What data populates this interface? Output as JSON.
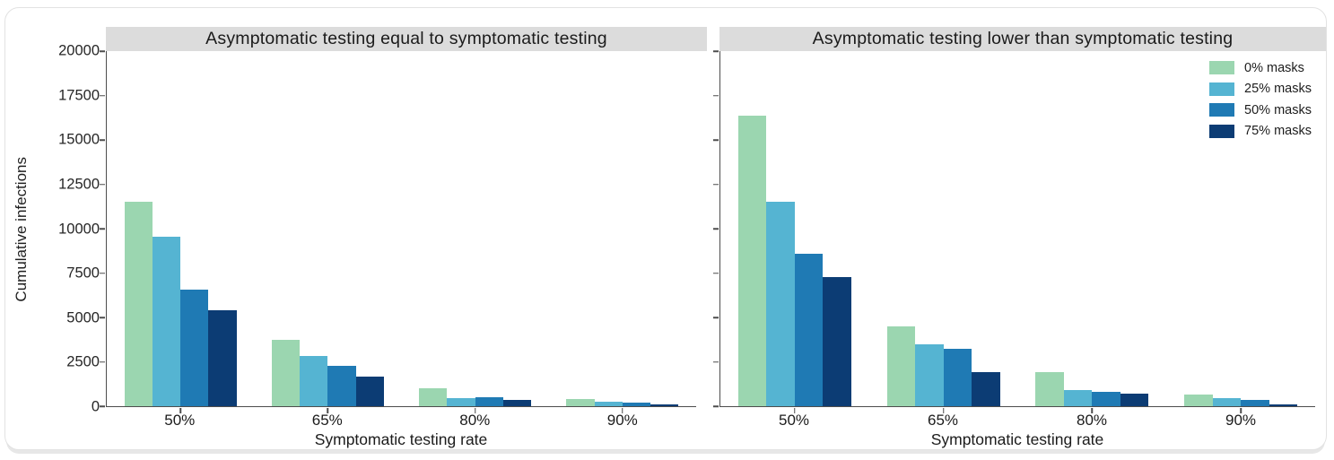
{
  "window": {
    "background": "#ffffff",
    "card_border_color": "#e2e2e2",
    "title_strip_color": "#dcdcdc",
    "axis_color": "#4d4d4d"
  },
  "chart_data": [
    {
      "type": "bar",
      "title": "Asymptomatic testing equal to symptomatic testing",
      "categories": [
        "50%",
        "65%",
        "80%",
        "90%"
      ],
      "series": [
        {
          "name": "0% masks",
          "color": "#9bd6b0",
          "values": [
            11500,
            3750,
            1000,
            380
          ]
        },
        {
          "name": "25% masks",
          "color": "#55b4d2",
          "values": [
            9550,
            2850,
            470,
            250
          ]
        },
        {
          "name": "50% masks",
          "color": "#1f7ab4",
          "values": [
            6550,
            2250,
            500,
            180
          ]
        },
        {
          "name": "75% masks",
          "color": "#0c3c74",
          "values": [
            5400,
            1670,
            330,
            90
          ]
        }
      ],
      "xlabel": "Symptomatic testing rate",
      "ylabel": "Cumulative infections",
      "ylim": [
        0,
        20000
      ],
      "yticks": [
        0,
        2500,
        5000,
        7500,
        10000,
        12500,
        15000,
        17500,
        20000
      ],
      "show_ytick_labels": true,
      "grid": false,
      "legend": null
    },
    {
      "type": "bar",
      "title": "Asymptomatic testing lower than symptomatic testing",
      "categories": [
        "50%",
        "65%",
        "80%",
        "90%"
      ],
      "series": [
        {
          "name": "0% masks",
          "color": "#9bd6b0",
          "values": [
            16350,
            4500,
            1900,
            650
          ]
        },
        {
          "name": "25% masks",
          "color": "#55b4d2",
          "values": [
            11500,
            3480,
            900,
            450
          ]
        },
        {
          "name": "50% masks",
          "color": "#1f7ab4",
          "values": [
            8600,
            3230,
            800,
            350
          ]
        },
        {
          "name": "75% masks",
          "color": "#0c3c74",
          "values": [
            7250,
            1900,
            690,
            100
          ]
        }
      ],
      "xlabel": "Symptomatic testing rate",
      "ylabel": "",
      "ylim": [
        0,
        20000
      ],
      "yticks": [
        0,
        2500,
        5000,
        7500,
        10000,
        12500,
        15000,
        17500,
        20000
      ],
      "show_ytick_labels": false,
      "grid": false,
      "legend": {
        "position": "top-right",
        "entries": [
          "0% masks",
          "25% masks",
          "50% masks",
          "75% masks"
        ]
      }
    }
  ]
}
